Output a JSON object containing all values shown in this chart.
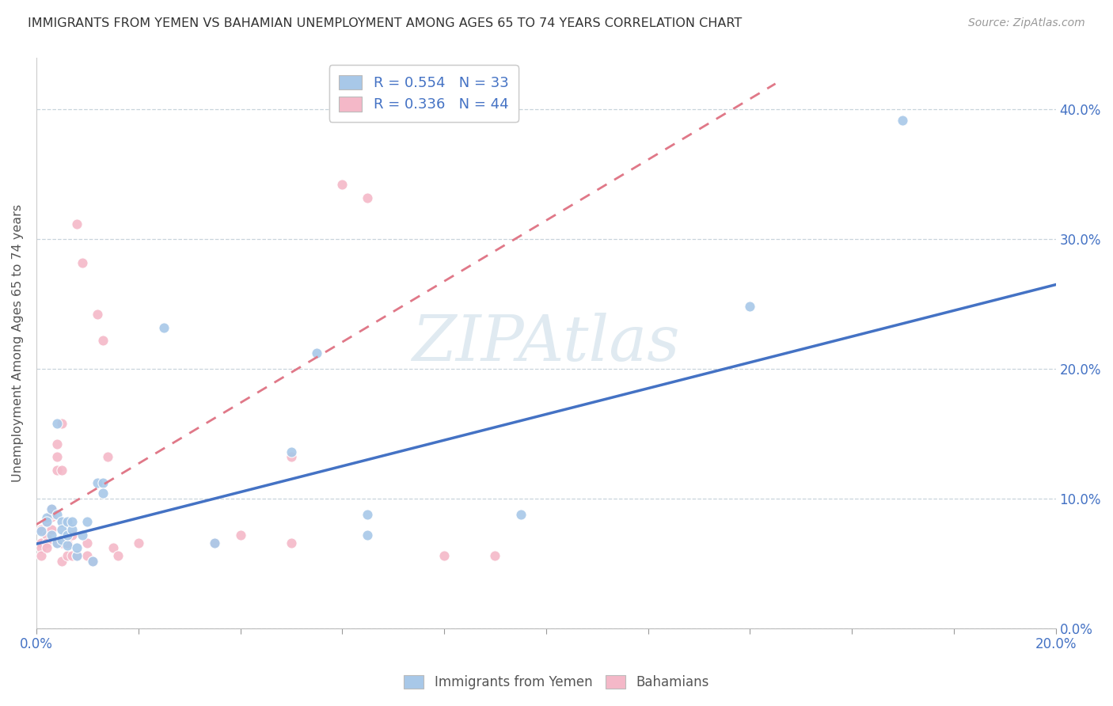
{
  "title": "IMMIGRANTS FROM YEMEN VS BAHAMIAN UNEMPLOYMENT AMONG AGES 65 TO 74 YEARS CORRELATION CHART",
  "source": "Source: ZipAtlas.com",
  "ylabel": "Unemployment Among Ages 65 to 74 years",
  "xlim": [
    0.0,
    0.2
  ],
  "ylim": [
    0.0,
    0.44
  ],
  "xticks": [
    0.0,
    0.02,
    0.04,
    0.06,
    0.08,
    0.1,
    0.12,
    0.14,
    0.16,
    0.18,
    0.2
  ],
  "xtick_labels": [
    "0.0%",
    "",
    "",
    "",
    "",
    "",
    "",
    "",
    "",
    "",
    "20.0%"
  ],
  "yticks": [
    0.0,
    0.1,
    0.2,
    0.3,
    0.4
  ],
  "ytick_labels_right": [
    "0.0%",
    "10.0%",
    "20.0%",
    "30.0%",
    "40.0%"
  ],
  "legend1_label": "R = 0.554   N = 33",
  "legend2_label": "R = 0.336   N = 44",
  "legend1_bottom_label": "Immigrants from Yemen",
  "legend2_bottom_label": "Bahamians",
  "blue_color": "#a8c8e8",
  "pink_color": "#f4b8c8",
  "blue_line_color": "#4472c4",
  "pink_line_color": "#e07888",
  "watermark": "ZIPAtlas",
  "watermark_color": "#ccdde8",
  "blue_scatter": [
    [
      0.001,
      0.075
    ],
    [
      0.002,
      0.085
    ],
    [
      0.002,
      0.082
    ],
    [
      0.003,
      0.092
    ],
    [
      0.003,
      0.072
    ],
    [
      0.004,
      0.088
    ],
    [
      0.004,
      0.066
    ],
    [
      0.004,
      0.158
    ],
    [
      0.005,
      0.082
    ],
    [
      0.005,
      0.068
    ],
    [
      0.005,
      0.076
    ],
    [
      0.006,
      0.064
    ],
    [
      0.006,
      0.072
    ],
    [
      0.006,
      0.082
    ],
    [
      0.007,
      0.076
    ],
    [
      0.007,
      0.082
    ],
    [
      0.008,
      0.056
    ],
    [
      0.008,
      0.062
    ],
    [
      0.009,
      0.072
    ],
    [
      0.01,
      0.082
    ],
    [
      0.011,
      0.052
    ],
    [
      0.012,
      0.112
    ],
    [
      0.013,
      0.112
    ],
    [
      0.013,
      0.104
    ],
    [
      0.025,
      0.232
    ],
    [
      0.035,
      0.066
    ],
    [
      0.05,
      0.136
    ],
    [
      0.055,
      0.212
    ],
    [
      0.065,
      0.088
    ],
    [
      0.065,
      0.072
    ],
    [
      0.095,
      0.088
    ],
    [
      0.14,
      0.248
    ],
    [
      0.17,
      0.392
    ]
  ],
  "pink_scatter": [
    [
      0.001,
      0.066
    ],
    [
      0.001,
      0.076
    ],
    [
      0.001,
      0.062
    ],
    [
      0.001,
      0.056
    ],
    [
      0.002,
      0.082
    ],
    [
      0.002,
      0.072
    ],
    [
      0.002,
      0.066
    ],
    [
      0.002,
      0.062
    ],
    [
      0.003,
      0.092
    ],
    [
      0.003,
      0.086
    ],
    [
      0.003,
      0.088
    ],
    [
      0.003,
      0.076
    ],
    [
      0.004,
      0.142
    ],
    [
      0.004,
      0.132
    ],
    [
      0.004,
      0.122
    ],
    [
      0.004,
      0.066
    ],
    [
      0.005,
      0.158
    ],
    [
      0.005,
      0.122
    ],
    [
      0.005,
      0.066
    ],
    [
      0.005,
      0.052
    ],
    [
      0.006,
      0.066
    ],
    [
      0.006,
      0.056
    ],
    [
      0.007,
      0.072
    ],
    [
      0.007,
      0.056
    ],
    [
      0.008,
      0.056
    ],
    [
      0.008,
      0.312
    ],
    [
      0.009,
      0.282
    ],
    [
      0.01,
      0.066
    ],
    [
      0.01,
      0.056
    ],
    [
      0.011,
      0.052
    ],
    [
      0.012,
      0.242
    ],
    [
      0.013,
      0.222
    ],
    [
      0.014,
      0.132
    ],
    [
      0.015,
      0.062
    ],
    [
      0.016,
      0.056
    ],
    [
      0.02,
      0.066
    ],
    [
      0.035,
      0.066
    ],
    [
      0.04,
      0.072
    ],
    [
      0.05,
      0.132
    ],
    [
      0.05,
      0.066
    ],
    [
      0.06,
      0.342
    ],
    [
      0.065,
      0.332
    ],
    [
      0.08,
      0.056
    ],
    [
      0.09,
      0.056
    ]
  ],
  "blue_trend_x": [
    0.0,
    0.2
  ],
  "blue_trend_y": [
    0.065,
    0.265
  ],
  "pink_trend_x": [
    0.0,
    0.145
  ],
  "pink_trend_y": [
    0.08,
    0.42
  ]
}
